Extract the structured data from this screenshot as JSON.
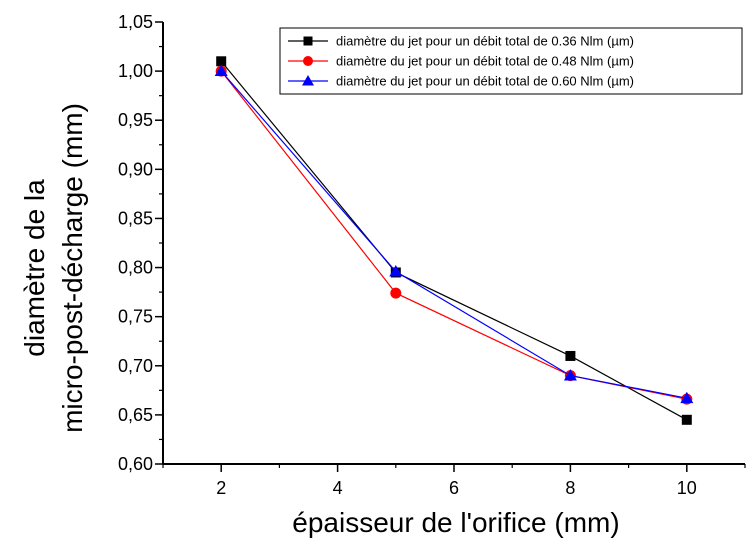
{
  "chart_data": {
    "type": "line",
    "xlabel": "épaisseur de l'orifice (mm)",
    "ylabel_lines": [
      "diamètre de la",
      "micro-post-décharge (mm)"
    ],
    "xlim": [
      1,
      11
    ],
    "ylim": [
      0.6,
      1.05
    ],
    "x_ticks": [
      2,
      4,
      6,
      8,
      10
    ],
    "x_tick_labels": [
      "2",
      "4",
      "6",
      "8",
      "10"
    ],
    "y_ticks": [
      0.6,
      0.65,
      0.7,
      0.75,
      0.8,
      0.85,
      0.9,
      0.95,
      1.0,
      1.05
    ],
    "y_tick_labels": [
      "0,60",
      "0,65",
      "0,70",
      "0,75",
      "0,80",
      "0,85",
      "0,90",
      "0,95",
      "1,00",
      "1,05"
    ],
    "grid": false,
    "legend_position": "top-right",
    "series": [
      {
        "name": "diamètre du jet pour un débit total de 0.36 Nlm (µm)",
        "color": "#000000",
        "marker": "square",
        "x": [
          2,
          5,
          8,
          10
        ],
        "y": [
          1.01,
          0.795,
          0.71,
          0.645
        ]
      },
      {
        "name": "diamètre du jet pour un débit total de 0.48 Nlm (µm)",
        "color": "#ff0000",
        "marker": "circle",
        "x": [
          2,
          5,
          8,
          10
        ],
        "y": [
          1.0,
          0.774,
          0.69,
          0.666
        ]
      },
      {
        "name": "diamètre du jet pour un débit total de 0.60 Nlm (µm)",
        "color": "#0000ff",
        "marker": "triangle",
        "x": [
          2,
          5,
          8,
          10
        ],
        "y": [
          1.0,
          0.796,
          0.69,
          0.667
        ]
      }
    ]
  }
}
